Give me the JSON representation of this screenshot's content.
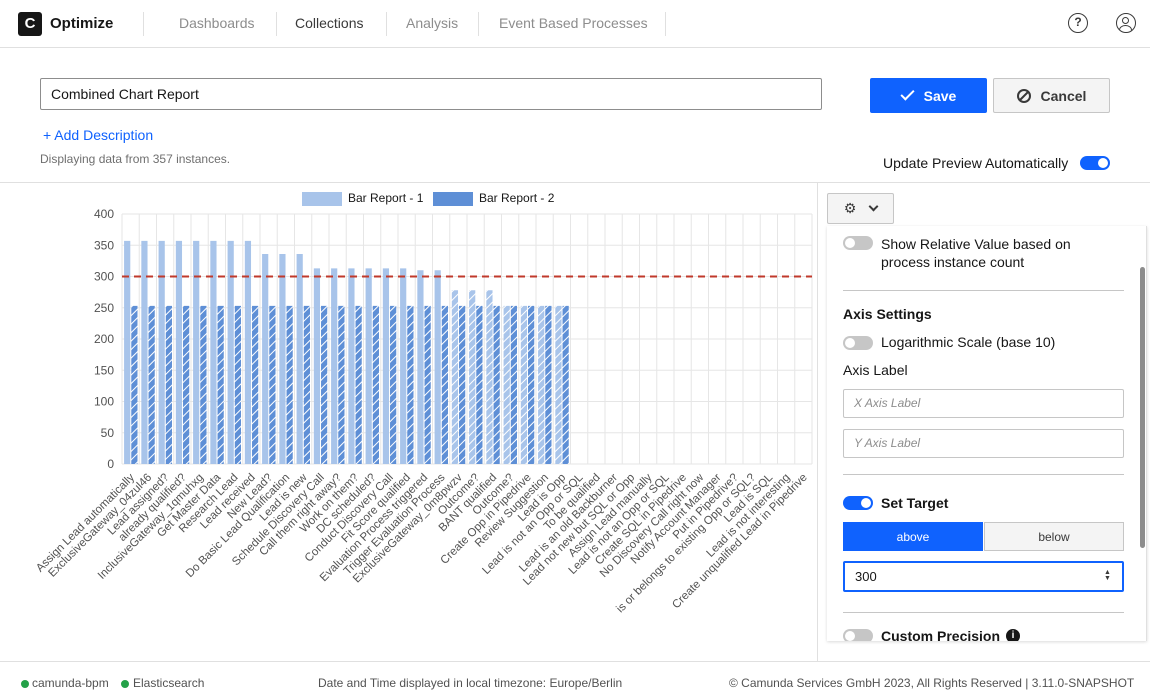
{
  "app": {
    "logo_letter": "C",
    "name": "Optimize"
  },
  "nav": [
    {
      "label": "Dashboards",
      "active": false
    },
    {
      "label": "Collections",
      "active": true
    },
    {
      "label": "Analysis",
      "active": false
    },
    {
      "label": "Event Based Processes",
      "active": false
    }
  ],
  "topbar": {
    "help_icon": "?"
  },
  "report": {
    "name": "Combined Chart Report",
    "add_description": "+ Add Description",
    "instances_text": "Displaying data from 357 instances.",
    "save_label": "Save",
    "cancel_label": "Cancel",
    "update_preview_label": "Update Preview Automatically",
    "update_preview_on": true
  },
  "chart_data": {
    "type": "bar",
    "title": "",
    "xlabel": "",
    "ylabel": "",
    "ylim": [
      0,
      400
    ],
    "yticks": [
      "0",
      "50",
      "100",
      "150",
      "200",
      "250",
      "300",
      "350",
      "400"
    ],
    "target": 300,
    "target_color": "#c0392b",
    "categories": [
      "Assign Lead automatically",
      "ExclusiveGateway_04zul46",
      "Lead assigned?",
      "already qualified?",
      "InclusiveGateway_1qmuhxg",
      "Get Master Data",
      "Research Lead",
      "Lead received",
      "New Lead?",
      "Do Basic Lead Qualification",
      "Lead is new",
      "Schedule Discovery Call",
      "Call them right away?",
      "Work on them?",
      "DC scheduled?",
      "Conduct Discovery Call",
      "Fit Score qualified",
      "Evaluation Process triggered",
      "Trigger Evaluation Process",
      "ExclusiveGateway_0m8pwzv",
      "Outcome?",
      "BANT qualified",
      "Outcome?",
      "Create Opp in Pipedrive",
      "Review Suggestion",
      "Lead is Opp",
      "Lead is not an Opp or SQL",
      "To be qualified",
      "Lead is an old Backburner",
      "Lead not new but SQL or Opp",
      "Assign Lead manually",
      "Lead is not an Opp or SQL",
      "Create SQL in Pipedrive",
      "No Discovery Call right now",
      "Notify Account Manager",
      "Put in Pipedrive?",
      "is or belongs to existing Opp or SQL?",
      "Lead is SQL",
      "Lead is not interesting",
      "Create unqualified Lead in Pipedrive"
    ],
    "series": [
      {
        "name": "Bar Report - 1",
        "color": "#a8c4ea",
        "values": [
          357,
          357,
          357,
          357,
          357,
          357,
          357,
          357,
          336,
          336,
          336,
          313,
          313,
          313,
          313,
          313,
          313,
          310,
          310,
          278,
          278,
          278,
          253,
          253,
          253,
          253,
          0,
          0,
          0,
          0,
          0,
          0,
          0,
          0,
          0,
          0,
          0,
          0,
          0,
          0
        ]
      },
      {
        "name": "Bar Report - 2",
        "color": "#5e8fd6",
        "values": [
          253,
          253,
          253,
          253,
          253,
          253,
          253,
          253,
          253,
          253,
          253,
          253,
          253,
          253,
          253,
          253,
          253,
          253,
          253,
          253,
          253,
          253,
          253,
          253,
          253,
          253,
          0,
          0,
          0,
          0,
          0,
          0,
          0,
          0,
          0,
          0,
          0,
          0,
          0,
          0
        ]
      }
    ]
  },
  "settings": {
    "gear_icon": "gear-icon",
    "relative_value_label": "Show Relative Value based on process instance count",
    "axis_settings_title": "Axis Settings",
    "log_scale_label": "Logarithmic Scale (base 10)",
    "axis_label_title": "Axis Label",
    "x_axis_placeholder": "X Axis Label",
    "y_axis_placeholder": "Y Axis Label",
    "set_target_label": "Set Target",
    "above_label": "above",
    "below_label": "below",
    "target_value": "300",
    "custom_precision_label": "Custom Precision",
    "info_icon": "i"
  },
  "footer": {
    "engine": "camunda-bpm",
    "database": "Elasticsearch",
    "timezone": "Date and Time displayed in local timezone: Europe/Berlin",
    "copyright": "© Camunda Services GmbH 2023, All Rights Reserved | 3.11.0-SNAPSHOT"
  }
}
